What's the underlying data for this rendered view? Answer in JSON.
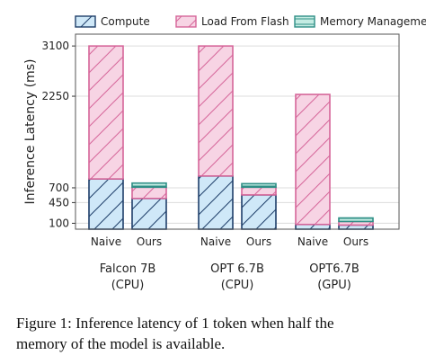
{
  "chart_data": {
    "type": "bar",
    "stacked": true,
    "ylabel": "Inference Latency (ms)",
    "yticks": [
      100,
      450,
      700,
      2250,
      3100
    ],
    "ylim": [
      0,
      3300
    ],
    "grid": true,
    "legend_placement": "top",
    "series": [
      {
        "name": "Compute",
        "color": "#cfe8f8",
        "edge": "#1f3f6a",
        "hatch": "/"
      },
      {
        "name": "Load From Flash",
        "color": "#f7d4e4",
        "edge": "#d6669a",
        "hatch": "/"
      },
      {
        "name": "Memory Management",
        "color": "#c4ece3",
        "edge": "#2f8f86",
        "hatch": "-"
      }
    ],
    "groups": [
      {
        "label_lines": [
          "Falcon 7B",
          "(CPU)"
        ],
        "bars": [
          {
            "label": "Naive",
            "values": [
              850,
              2250,
              0
            ]
          },
          {
            "label": "Ours",
            "values": [
              520,
              190,
              70
            ]
          }
        ]
      },
      {
        "label_lines": [
          "OPT 6.7B",
          "(CPU)"
        ],
        "bars": [
          {
            "label": "Naive",
            "values": [
              900,
              2200,
              0
            ]
          },
          {
            "label": "Ours",
            "values": [
              580,
              130,
              60
            ]
          }
        ]
      },
      {
        "label_lines": [
          "OPT6.7B",
          "(GPU)"
        ],
        "bars": [
          {
            "label": "Naive",
            "values": [
              80,
              2200,
              0
            ]
          },
          {
            "label": "Ours",
            "values": [
              70,
              60,
              60
            ]
          }
        ]
      }
    ]
  },
  "caption": {
    "line1": "Figure 1: Inference latency of 1 token when half the",
    "line2": "memory of the model is available."
  }
}
